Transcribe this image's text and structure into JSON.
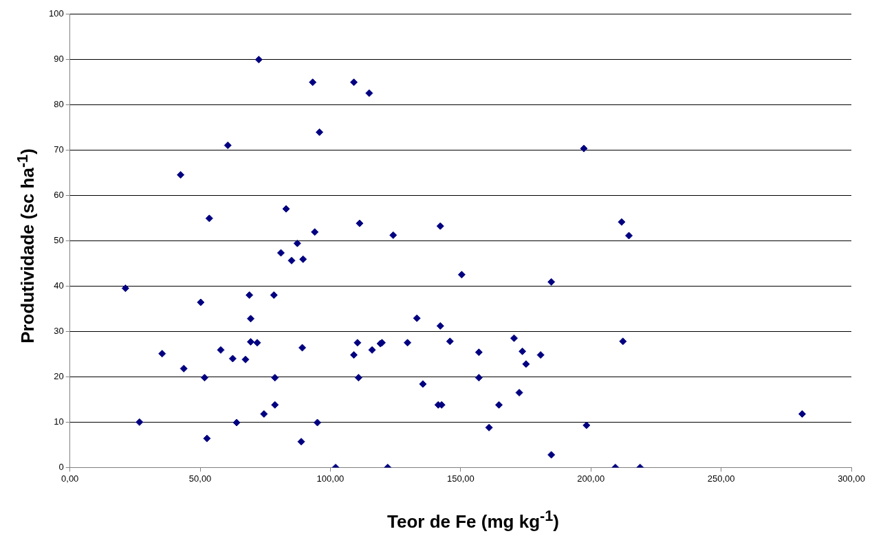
{
  "chart_data": {
    "type": "scatter",
    "xlabel": "Teor de Fe (mg kg$^{-1}$)",
    "ylabel": "Produtividade (sc ha$^{-1}$)",
    "x": [
      72.5,
      93.2,
      95.8,
      60.6,
      42.5,
      83.0,
      53.5,
      94.0,
      87.3,
      109.0,
      114.9,
      197.3,
      111.2,
      124.1,
      142.2,
      211.8,
      214.6,
      81.0,
      85.1,
      89.5,
      21.3,
      50.2,
      68.9,
      78.3,
      69.4,
      69.4,
      71.9,
      35.4,
      57.9,
      62.5,
      67.4,
      89.2,
      43.7,
      51.7,
      78.7,
      78.7,
      74.5,
      26.7,
      64.0,
      95.0,
      52.6,
      88.8,
      150.4,
      184.8,
      133.2,
      142.2,
      110.4,
      109.0,
      116.0,
      119.2,
      119.8,
      129.6,
      145.9,
      157.0,
      170.5,
      173.7,
      180.7,
      175.1,
      110.8,
      157.0,
      135.5,
      172.5,
      141.4,
      142.7,
      164.7,
      160.9,
      198.3,
      184.8,
      102.0,
      122.0,
      212.3,
      281.1,
      209.4,
      218.9
    ],
    "values": [
      89.9,
      84.9,
      73.9,
      71.0,
      64.5,
      57.0,
      54.9,
      51.9,
      49.4,
      84.9,
      82.5,
      70.3,
      53.8,
      51.2,
      53.2,
      54.1,
      51.1,
      47.3,
      45.6,
      45.9,
      39.5,
      36.4,
      38.0,
      38.0,
      32.8,
      27.7,
      27.5,
      25.1,
      25.9,
      24.0,
      23.8,
      26.4,
      21.8,
      19.8,
      19.8,
      13.8,
      11.8,
      10.0,
      9.9,
      9.9,
      6.4,
      5.7,
      42.5,
      40.9,
      32.9,
      31.2,
      27.5,
      24.8,
      25.9,
      27.3,
      27.5,
      27.5,
      27.8,
      25.4,
      28.5,
      25.6,
      24.8,
      22.8,
      19.8,
      19.8,
      18.4,
      16.5,
      13.8,
      13.8,
      13.8,
      8.8,
      9.3,
      2.8,
      0,
      0,
      27.8,
      11.8,
      0,
      0
    ],
    "color": "#000080",
    "marker": "diamond",
    "grid": "y",
    "xlim": [
      0,
      300
    ],
    "xticks": [
      {
        "value": 0,
        "label": "0,00"
      },
      {
        "value": 50,
        "label": "50,00"
      },
      {
        "value": 100,
        "label": "100,00"
      },
      {
        "value": 150,
        "label": "150,00"
      },
      {
        "value": 200,
        "label": "200,00"
      },
      {
        "value": 250,
        "label": "250,00"
      },
      {
        "value": 300,
        "label": "300,00"
      }
    ],
    "ylim": [
      0,
      100
    ],
    "yticks": [
      0,
      10,
      20,
      30,
      40,
      50,
      60,
      70,
      80,
      90,
      100
    ]
  }
}
